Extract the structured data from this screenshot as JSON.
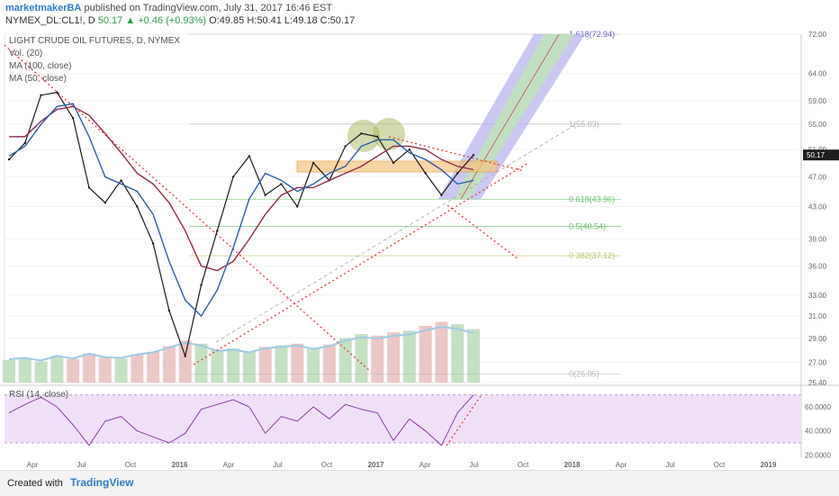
{
  "header": {
    "author": "marketmakerBA",
    "published_text": "published on TradingView.com, July 31, 2017 16:46 EST",
    "symbol_line": "NYMEX_DL:CL1!, D",
    "change": "50.17 ▲ +0.46 (+0.93%)",
    "ohlc": "O:49.85 H:50.41 L:49.18 C:50.17"
  },
  "legend": {
    "title": "LIGHT CRUDE OIL FUTURES, D, NYMEX",
    "vol": "Vol. (20)",
    "ma100": "MA (100, close)",
    "ma50": "MA (50, close)",
    "rsi": "RSI (14, close)"
  },
  "colors": {
    "ma100": "#8b2e46",
    "ma50": "#2d5ea8",
    "trendline": "#e0302e",
    "rsi": "#8b3aa0",
    "rsi_band": "#efe0f7",
    "fork_blue": "#b8b6ee",
    "fork_green": "#bfe3b8",
    "zone": "#f6c47e",
    "circle": "#a6b85a",
    "vol_up": "#b7d8b4",
    "vol_down": "#e8b8b8",
    "vol_ma": "#9ecbe5",
    "price_tag": "#1f1f1f"
  },
  "price_axis": {
    "ticks": [
      "72.00",
      "64.00",
      "59.00",
      "55.00",
      "51.00",
      "47.00",
      "43.00",
      "39.00",
      "36.00",
      "33.00",
      "31.00",
      "29.00",
      "27.00",
      "25.40"
    ],
    "current": "50.17"
  },
  "rsi_axis": {
    "ticks": [
      "60.0000",
      "40.0000",
      "20.0000"
    ]
  },
  "time_axis": {
    "ticks": [
      "Apr",
      "Jul",
      "Oct",
      "2016",
      "Apr",
      "Jul",
      "Oct",
      "2017",
      "Apr",
      "Jul",
      "Oct",
      "2018",
      "Apr",
      "Jul",
      "Oct",
      "2019"
    ]
  },
  "fib_labels": [
    "1.618(72.94)",
    "1(55.03)",
    "0.618(43.96)",
    "0.5(40.54)",
    "0.382(37.12)",
    "0(26.05)"
  ],
  "footer": {
    "created": "Created with",
    "brand": "TradingView"
  },
  "chart_data": {
    "type": "line",
    "title": "LIGHT CRUDE OIL FUTURES, D, NYMEX",
    "xlabel": "",
    "ylabel": "",
    "ylim": [
      25.4,
      72
    ],
    "y_scale": "log",
    "x": [
      "2015-03",
      "2015-04",
      "2015-05",
      "2015-06",
      "2015-07",
      "2015-08",
      "2015-09",
      "2015-10",
      "2015-11",
      "2015-12",
      "2016-01",
      "2016-02",
      "2016-03",
      "2016-04",
      "2016-05",
      "2016-06",
      "2016-07",
      "2016-08",
      "2016-09",
      "2016-10",
      "2016-11",
      "2016-12",
      "2017-01",
      "2017-02",
      "2017-03",
      "2017-04",
      "2017-05",
      "2017-06",
      "2017-07",
      "2017-07-31"
    ],
    "series": [
      {
        "name": "",
        "values": [
          49.5,
          52.0,
          60.0,
          60.5,
          56.0,
          45.5,
          43.5,
          46.5,
          43.0,
          38.5,
          31.5,
          27.5,
          34.0,
          40.0,
          47.0,
          50.0,
          44.5,
          46.0,
          43.0,
          49.0,
          46.5,
          51.5,
          53.5,
          53.0,
          49.0,
          51.0,
          47.5,
          44.5,
          47.5,
          50.17
        ]
      },
      {
        "name": "MA (100, close)",
        "values": [
          53.0,
          53.0,
          55.5,
          57.5,
          58.0,
          56.5,
          53.5,
          50.5,
          47.5,
          46.0,
          43.5,
          40.0,
          36.0,
          35.5,
          36.5,
          39.0,
          42.0,
          44.5,
          45.5,
          45.5,
          46.5,
          47.5,
          48.5,
          50.0,
          51.5,
          51.5,
          51.0,
          49.5,
          48.5,
          48.0
        ]
      },
      {
        "name": "MA (50, close)",
        "values": [
          50.0,
          51.5,
          55.0,
          58.0,
          58.5,
          53.0,
          47.0,
          46.0,
          45.0,
          42.0,
          36.5,
          32.5,
          31.0,
          33.5,
          38.0,
          44.0,
          47.5,
          46.5,
          45.0,
          46.0,
          47.5,
          48.5,
          51.5,
          52.5,
          52.5,
          50.5,
          49.5,
          48.0,
          46.0,
          46.5
        ]
      }
    ],
    "fibonacci": [
      {
        "level": "1.618",
        "value": 72.94
      },
      {
        "level": "1",
        "value": 55.03
      },
      {
        "level": "0.618",
        "value": 43.96
      },
      {
        "level": "0.5",
        "value": 40.54
      },
      {
        "level": "0.382",
        "value": 37.12
      },
      {
        "level": "0",
        "value": 26.05
      }
    ],
    "volume_relative": [
      0.28,
      0.3,
      0.26,
      0.33,
      0.29,
      0.36,
      0.31,
      0.3,
      0.35,
      0.38,
      0.45,
      0.52,
      0.48,
      0.4,
      0.42,
      0.38,
      0.44,
      0.46,
      0.48,
      0.43,
      0.47,
      0.55,
      0.6,
      0.58,
      0.62,
      0.64,
      0.7,
      0.75,
      0.72,
      0.66
    ],
    "rsi": {
      "name": "RSI (14, close)",
      "ylim": [
        18,
        75
      ],
      "bands": [
        70,
        30
      ],
      "values": [
        55,
        62,
        68,
        60,
        45,
        28,
        48,
        52,
        40,
        35,
        30,
        38,
        58,
        62,
        66,
        60,
        38,
        52,
        48,
        60,
        50,
        62,
        58,
        55,
        32,
        50,
        40,
        28,
        55,
        70
      ]
    }
  }
}
